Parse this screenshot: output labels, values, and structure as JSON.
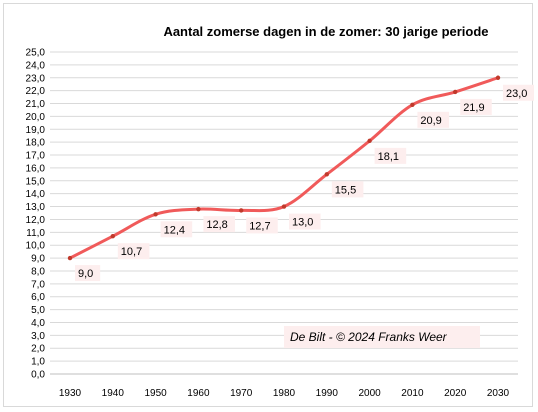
{
  "chart_data": {
    "type": "line",
    "title": "Aantal zomerse dagen in de zomer:  30 jarige periode",
    "x": [
      1930,
      1940,
      1950,
      1960,
      1970,
      1980,
      1990,
      2000,
      2010,
      2020,
      2030
    ],
    "values": [
      9.0,
      10.7,
      12.4,
      12.8,
      12.7,
      13.0,
      15.5,
      18.1,
      20.9,
      21.9,
      23.0
    ],
    "data_labels": [
      "9,0",
      "10,7",
      "12,4",
      "12,8",
      "12,7",
      "13,0",
      "15,5",
      "18,1",
      "20,9",
      "21,9",
      "23,0"
    ],
    "x_tick_labels": [
      "1930",
      "1940",
      "1950",
      "1960",
      "1970",
      "1980",
      "1990",
      "2000",
      "2010",
      "2020",
      "2030"
    ],
    "y_tick_labels": [
      "0,0",
      "1,0",
      "2,0",
      "3,0",
      "4,0",
      "5,0",
      "6,0",
      "7,0",
      "8,0",
      "9,0",
      "10,0",
      "11,0",
      "12,0",
      "13,0",
      "14,0",
      "15,0",
      "16,0",
      "17,0",
      "18,0",
      "19,0",
      "20,0",
      "21,0",
      "22,0",
      "23,0",
      "24,0",
      "25,0"
    ],
    "ylim": [
      0,
      25
    ],
    "xlim": [
      1930,
      2030
    ],
    "grid": true,
    "line_color": "#f05a5a",
    "marker_color": "#c0392b",
    "annotation": "De Bilt - © 2024 Franks Weer"
  }
}
